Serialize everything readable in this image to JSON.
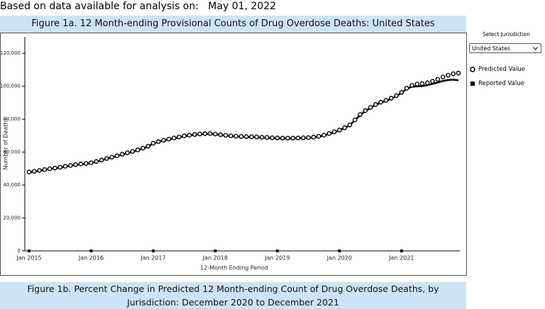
{
  "header": {
    "label": "Based on data available for analysis on:",
    "date": "May 01, 2022"
  },
  "controls": {
    "select_label": "Select Jurisdiction",
    "selected": "United States"
  },
  "figure_1b_title": "Figure 1b. Percent Change in Predicted 12 Month-ending Count of Drug Overdose Deaths, by Jurisdiction: December 2020 to December 2021",
  "chart_data": {
    "type": "line",
    "title": "Figure 1a. 12 Month-ending Provisional Counts of Drug Overdose Deaths: United States",
    "x_label": "12-Month Ending Period",
    "y_label": "Number of Deaths",
    "x": [
      "2015-01",
      "2015-02",
      "2015-03",
      "2015-04",
      "2015-05",
      "2015-06",
      "2015-07",
      "2015-08",
      "2015-09",
      "2015-10",
      "2015-11",
      "2015-12",
      "2016-01",
      "2016-02",
      "2016-03",
      "2016-04",
      "2016-05",
      "2016-06",
      "2016-07",
      "2016-08",
      "2016-09",
      "2016-10",
      "2016-11",
      "2016-12",
      "2017-01",
      "2017-02",
      "2017-03",
      "2017-04",
      "2017-05",
      "2017-06",
      "2017-07",
      "2017-08",
      "2017-09",
      "2017-10",
      "2017-11",
      "2017-12",
      "2018-01",
      "2018-02",
      "2018-03",
      "2018-04",
      "2018-05",
      "2018-06",
      "2018-07",
      "2018-08",
      "2018-09",
      "2018-10",
      "2018-11",
      "2018-12",
      "2019-01",
      "2019-02",
      "2019-03",
      "2019-04",
      "2019-05",
      "2019-06",
      "2019-07",
      "2019-08",
      "2019-09",
      "2019-10",
      "2019-11",
      "2019-12",
      "2020-01",
      "2020-02",
      "2020-03",
      "2020-04",
      "2020-05",
      "2020-06",
      "2020-07",
      "2020-08",
      "2020-09",
      "2020-10",
      "2020-11",
      "2020-12",
      "2021-01",
      "2021-02",
      "2021-03",
      "2021-04",
      "2021-05",
      "2021-06",
      "2021-07",
      "2021-08",
      "2021-09",
      "2021-10",
      "2021-11",
      "2021-12"
    ],
    "series": [
      {
        "name": "Predicted Value",
        "color": "#000000",
        "marker": "open-circle",
        "values": [
          47900,
          48300,
          48900,
          49400,
          49900,
          50300,
          50800,
          51400,
          51900,
          52400,
          52800,
          53100,
          53500,
          54300,
          55200,
          56100,
          56900,
          57800,
          58700,
          59600,
          60400,
          61300,
          62400,
          63600,
          65400,
          66400,
          67200,
          67900,
          68600,
          69200,
          69800,
          70300,
          70700,
          71000,
          71200,
          71300,
          71000,
          70600,
          70200,
          69900,
          69700,
          69500,
          69400,
          69300,
          69200,
          69000,
          68900,
          68700,
          68600,
          68500,
          68500,
          68500,
          68600,
          68700,
          68800,
          69100,
          69600,
          70300,
          71300,
          72300,
          73400,
          74800,
          76500,
          79600,
          82800,
          85200,
          87200,
          88900,
          90300,
          91400,
          92700,
          94300,
          96300,
          98800,
          100500,
          101300,
          101600,
          102100,
          103000,
          104200,
          105600,
          106700,
          107600,
          108000
        ]
      },
      {
        "name": "Reported Value",
        "color": "#000000",
        "marker": "line",
        "values": [
          47700,
          48100,
          48700,
          49200,
          49700,
          50100,
          50600,
          51200,
          51700,
          52200,
          52600,
          52900,
          53300,
          54100,
          55000,
          55900,
          56700,
          57600,
          58500,
          59400,
          60200,
          61100,
          62200,
          63400,
          65200,
          66200,
          67000,
          67700,
          68400,
          69000,
          69600,
          70100,
          70500,
          70800,
          71000,
          71100,
          70800,
          70400,
          70000,
          69700,
          69500,
          69300,
          69200,
          69100,
          69000,
          68800,
          68700,
          68500,
          68400,
          68300,
          68300,
          68300,
          68400,
          68500,
          68600,
          68900,
          69400,
          70100,
          71100,
          72100,
          73200,
          74600,
          76300,
          79400,
          82500,
          84900,
          86900,
          88600,
          90000,
          91100,
          92400,
          94000,
          96000,
          98400,
          99700,
          99900,
          100100,
          100700,
          101400,
          102300,
          103200,
          103800,
          104000,
          103600
        ]
      }
    ],
    "xlim": [
      "2015-01",
      "2021-12"
    ],
    "xticks": [
      {
        "value": "2015-01",
        "label": "Jan 2015"
      },
      {
        "value": "2016-01",
        "label": "Jan 2016"
      },
      {
        "value": "2017-01",
        "label": "Jan 2017"
      },
      {
        "value": "2018-01",
        "label": "Jan 2018"
      },
      {
        "value": "2019-01",
        "label": "Jan 2019"
      },
      {
        "value": "2020-01",
        "label": "Jan 2020"
      },
      {
        "value": "2021-01",
        "label": "Jan 2021"
      }
    ],
    "ylim": [
      0,
      130000
    ],
    "yticks": [
      0,
      {
        "value": 20000,
        "label": "20,000"
      },
      {
        "value": 40000,
        "label": "40,000"
      },
      {
        "value": 60000,
        "label": "60,000"
      },
      {
        "value": 80000,
        "label": "80,000"
      },
      {
        "value": 100000,
        "label": "100,000"
      },
      {
        "value": 120000,
        "label": "120,000"
      }
    ],
    "grid": false
  }
}
